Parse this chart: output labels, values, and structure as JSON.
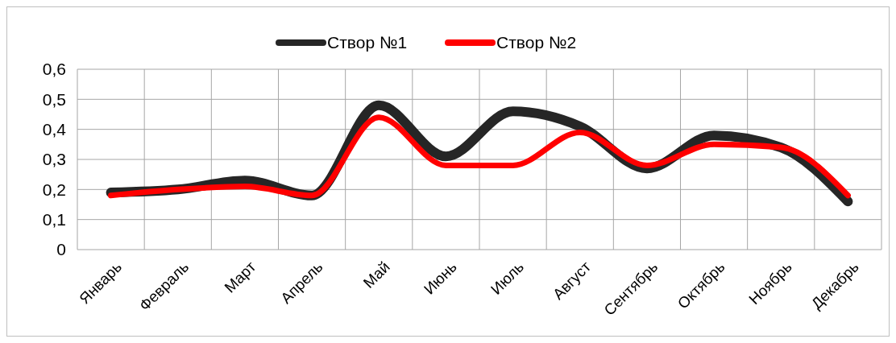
{
  "chart_data": {
    "type": "line",
    "categories": [
      "Январь",
      "Февраль",
      "Март",
      "Апрель",
      "Май",
      "Июнь",
      "Июль",
      "Август",
      "Сентябрь",
      "Октябрь",
      "Ноябрь",
      "Декабрь"
    ],
    "series": [
      {
        "name": "Створ №1",
        "color": "#262626",
        "values": [
          0.19,
          0.2,
          0.23,
          0.18,
          0.48,
          0.31,
          0.46,
          0.41,
          0.27,
          0.38,
          0.34,
          0.16
        ]
      },
      {
        "name": "Створ №2",
        "color": "#ff0000",
        "values": [
          0.18,
          0.2,
          0.21,
          0.18,
          0.44,
          0.28,
          0.28,
          0.39,
          0.28,
          0.35,
          0.34,
          0.18
        ]
      }
    ],
    "ylim": [
      0,
      0.6
    ],
    "yticks": [
      {
        "value": 0,
        "label": "0"
      },
      {
        "value": 0.1,
        "label": "0,1"
      },
      {
        "value": 0.2,
        "label": "0,2"
      },
      {
        "value": 0.3,
        "label": "0,3"
      },
      {
        "value": 0.4,
        "label": "0,4"
      },
      {
        "value": 0.5,
        "label": "0,5"
      },
      {
        "value": 0.6,
        "label": "0,6"
      }
    ],
    "grid": true,
    "legend": "top",
    "marker": "none",
    "line_style": "solid"
  }
}
